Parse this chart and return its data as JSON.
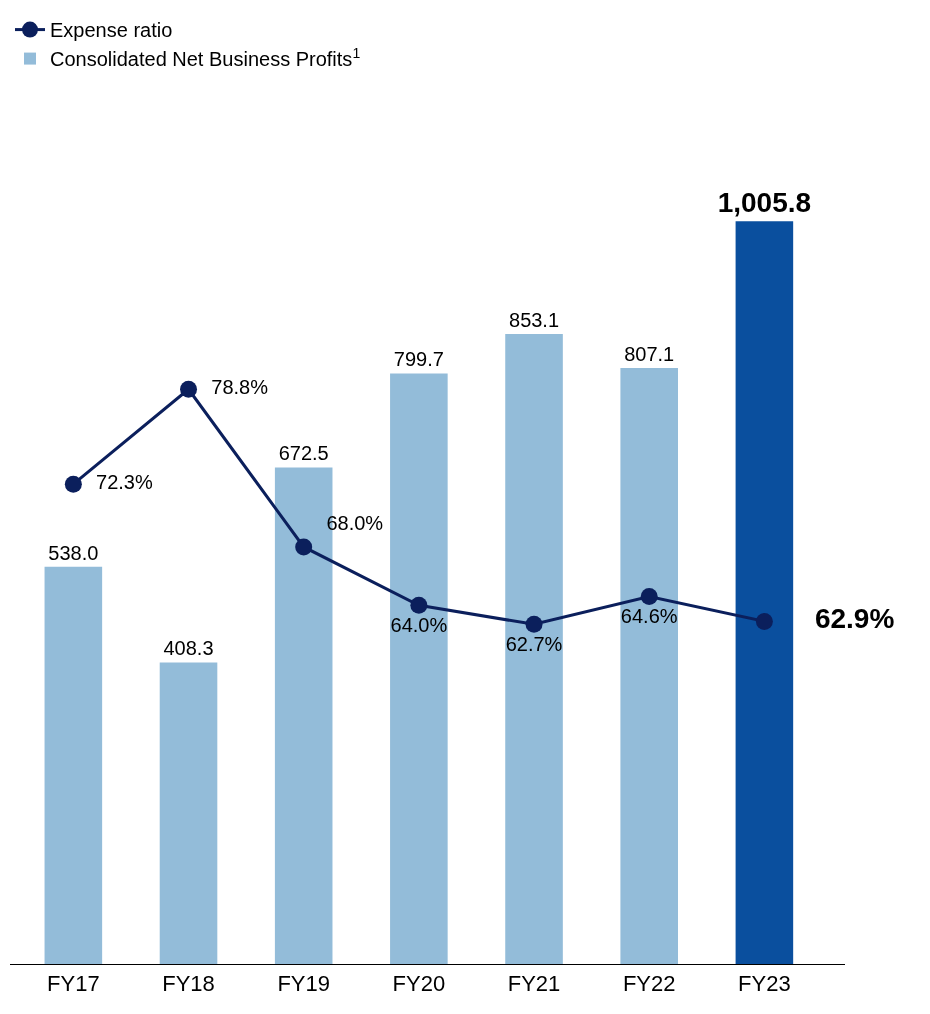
{
  "chart_data": {
    "type": "bar",
    "categories": [
      "FY17",
      "FY18",
      "FY19",
      "FY20",
      "FY21",
      "FY22",
      "FY23"
    ],
    "series": [
      {
        "name": "Expense ratio",
        "type": "line",
        "axis": "y2",
        "color": "#0b1f5c",
        "marker": "circle",
        "values": [
          72.3,
          78.8,
          68.0,
          64.0,
          62.7,
          64.6,
          62.9
        ],
        "value_labels": [
          "72.3%",
          "78.8%",
          "68.0%",
          "64.0%",
          "62.7%",
          "64.6%",
          "62.9%"
        ]
      },
      {
        "name": "Consolidated Net Business Profits$^{1}$",
        "color": "#93bcd9",
        "colors": [
          "#93bcd9",
          "#93bcd9",
          "#93bcd9",
          "#93bcd9",
          "#93bcd9",
          "#93bcd9",
          "#0a4f9e"
        ],
        "values": [
          538.0,
          408.3,
          672.5,
          799.7,
          853.1,
          807.1,
          1005.8
        ],
        "value_labels": [
          "538.0",
          "408.3",
          "672.5",
          "799.7",
          "853.1",
          "807.1",
          "1,005.8"
        ]
      }
    ],
    "tick_labels": "x",
    "legend": "top left"
  }
}
